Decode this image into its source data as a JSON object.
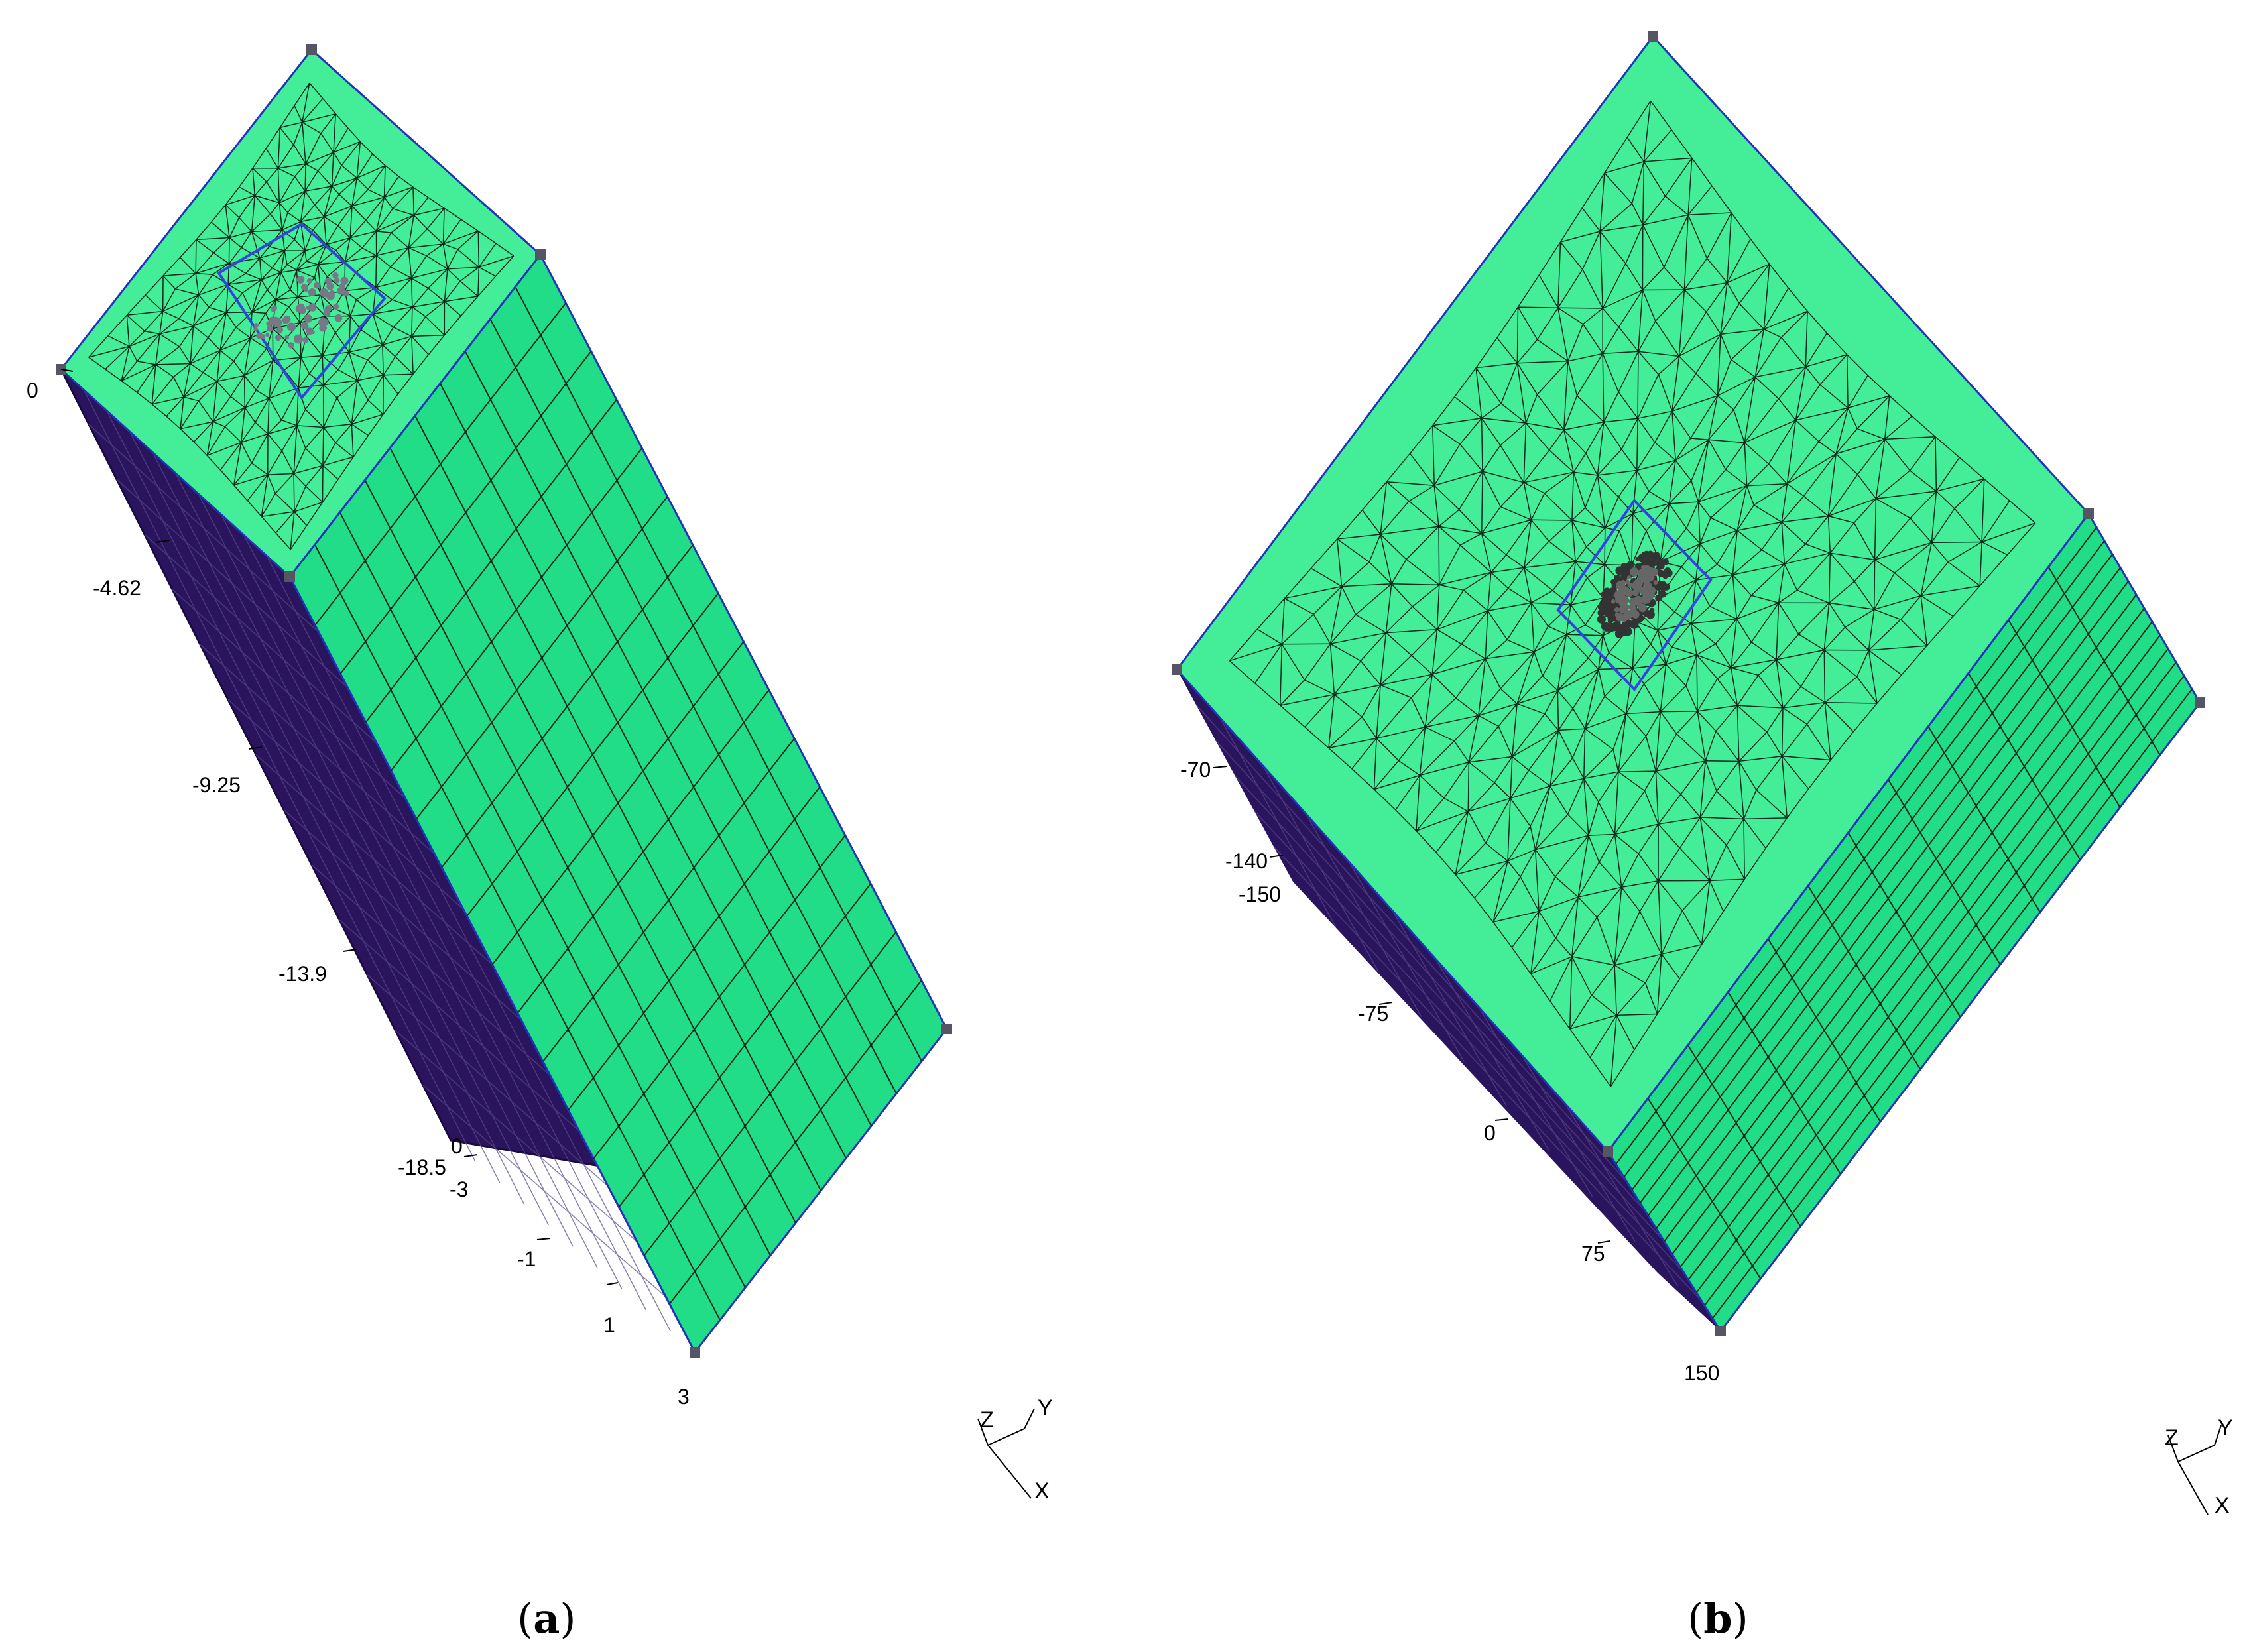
{
  "panels": [
    {
      "id": "a",
      "caption_open": "(",
      "caption_letter": "a",
      "caption_close": ")",
      "labels": [
        "0",
        "-4.62",
        "-9.25",
        "-13.9",
        "-18.5",
        "0",
        "-3",
        "-1",
        "1",
        "3"
      ],
      "triad": {
        "z": "Z",
        "y": "Y",
        "x": "X"
      }
    },
    {
      "id": "b",
      "caption_open": "(",
      "caption_letter": "b",
      "caption_close": ")",
      "labels": [
        "-70",
        "-140",
        "-150",
        "-75",
        "0",
        "75",
        "150"
      ],
      "triad": {
        "z": "Z",
        "y": "Y",
        "x": "X"
      }
    }
  ],
  "colors": {
    "top_face": "#44ee99",
    "front_face": "#22dd88",
    "side_face": "#2a145e",
    "mesh_line": "#0a2a1a",
    "edge_line": "#2233bb",
    "pile_outline": "#3344dd",
    "vertex_marker": "#555566"
  }
}
